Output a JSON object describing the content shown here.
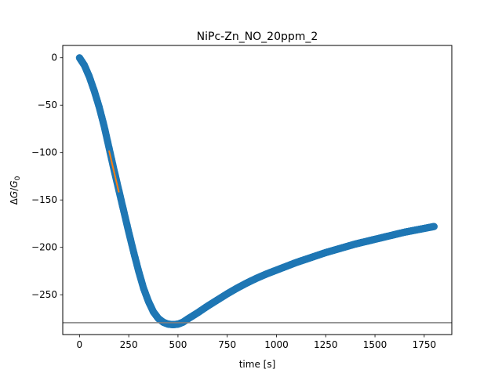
{
  "chart_data": {
    "type": "scatter",
    "title": "NiPc-Zn_NO_20ppm_2",
    "xlabel": "time [s]",
    "ylabel_parts": {
      "delta": "Δ",
      "g": "G",
      "slash": "/",
      "g0": "G",
      "sub": "0"
    },
    "xlim": [
      -85,
      1890
    ],
    "ylim": [
      -292,
      13
    ],
    "grid": false,
    "x_ticks": [
      0,
      250,
      500,
      750,
      1000,
      1250,
      1500,
      1750
    ],
    "x_tick_labels": [
      "0",
      "250",
      "500",
      "750",
      "1000",
      "1250",
      "1500",
      "1750"
    ],
    "y_ticks": [
      0,
      -50,
      -100,
      -150,
      -200,
      -250
    ],
    "y_tick_labels": [
      "0",
      "−50",
      "−100",
      "−150",
      "−200",
      "−250"
    ],
    "series": [
      {
        "kind": "scatter",
        "color": "#1f77b4",
        "points": [
          [
            0,
            0
          ],
          [
            25,
            -8
          ],
          [
            50,
            -20
          ],
          [
            75,
            -35
          ],
          [
            100,
            -52
          ],
          [
            125,
            -72
          ],
          [
            150,
            -95
          ],
          [
            175,
            -118
          ],
          [
            200,
            -140
          ],
          [
            225,
            -162
          ],
          [
            250,
            -184
          ],
          [
            275,
            -205
          ],
          [
            300,
            -225
          ],
          [
            325,
            -243
          ],
          [
            350,
            -257
          ],
          [
            375,
            -268
          ],
          [
            400,
            -275
          ],
          [
            425,
            -279
          ],
          [
            450,
            -281
          ],
          [
            475,
            -281.5
          ],
          [
            500,
            -281
          ],
          [
            525,
            -279
          ],
          [
            550,
            -275.5
          ],
          [
            600,
            -269
          ],
          [
            650,
            -262
          ],
          [
            700,
            -255.5
          ],
          [
            750,
            -249
          ],
          [
            800,
            -243
          ],
          [
            850,
            -237.5
          ],
          [
            900,
            -232.5
          ],
          [
            950,
            -228
          ],
          [
            1000,
            -224
          ],
          [
            1050,
            -220
          ],
          [
            1100,
            -216
          ],
          [
            1150,
            -212.5
          ],
          [
            1200,
            -209
          ],
          [
            1250,
            -205.5
          ],
          [
            1300,
            -202.5
          ],
          [
            1350,
            -199.5
          ],
          [
            1400,
            -196.5
          ],
          [
            1450,
            -194
          ],
          [
            1500,
            -191.5
          ],
          [
            1550,
            -189
          ],
          [
            1600,
            -186.5
          ],
          [
            1650,
            -184
          ],
          [
            1700,
            -182
          ],
          [
            1750,
            -180
          ],
          [
            1800,
            -178
          ]
        ]
      },
      {
        "kind": "line",
        "color": "#ff7f0e",
        "points": [
          [
            150,
            -98
          ],
          [
            200,
            -142
          ]
        ]
      }
    ],
    "reference_lines": [
      {
        "kind": "horizontal",
        "y": -279.5,
        "color": "#808080"
      }
    ]
  }
}
